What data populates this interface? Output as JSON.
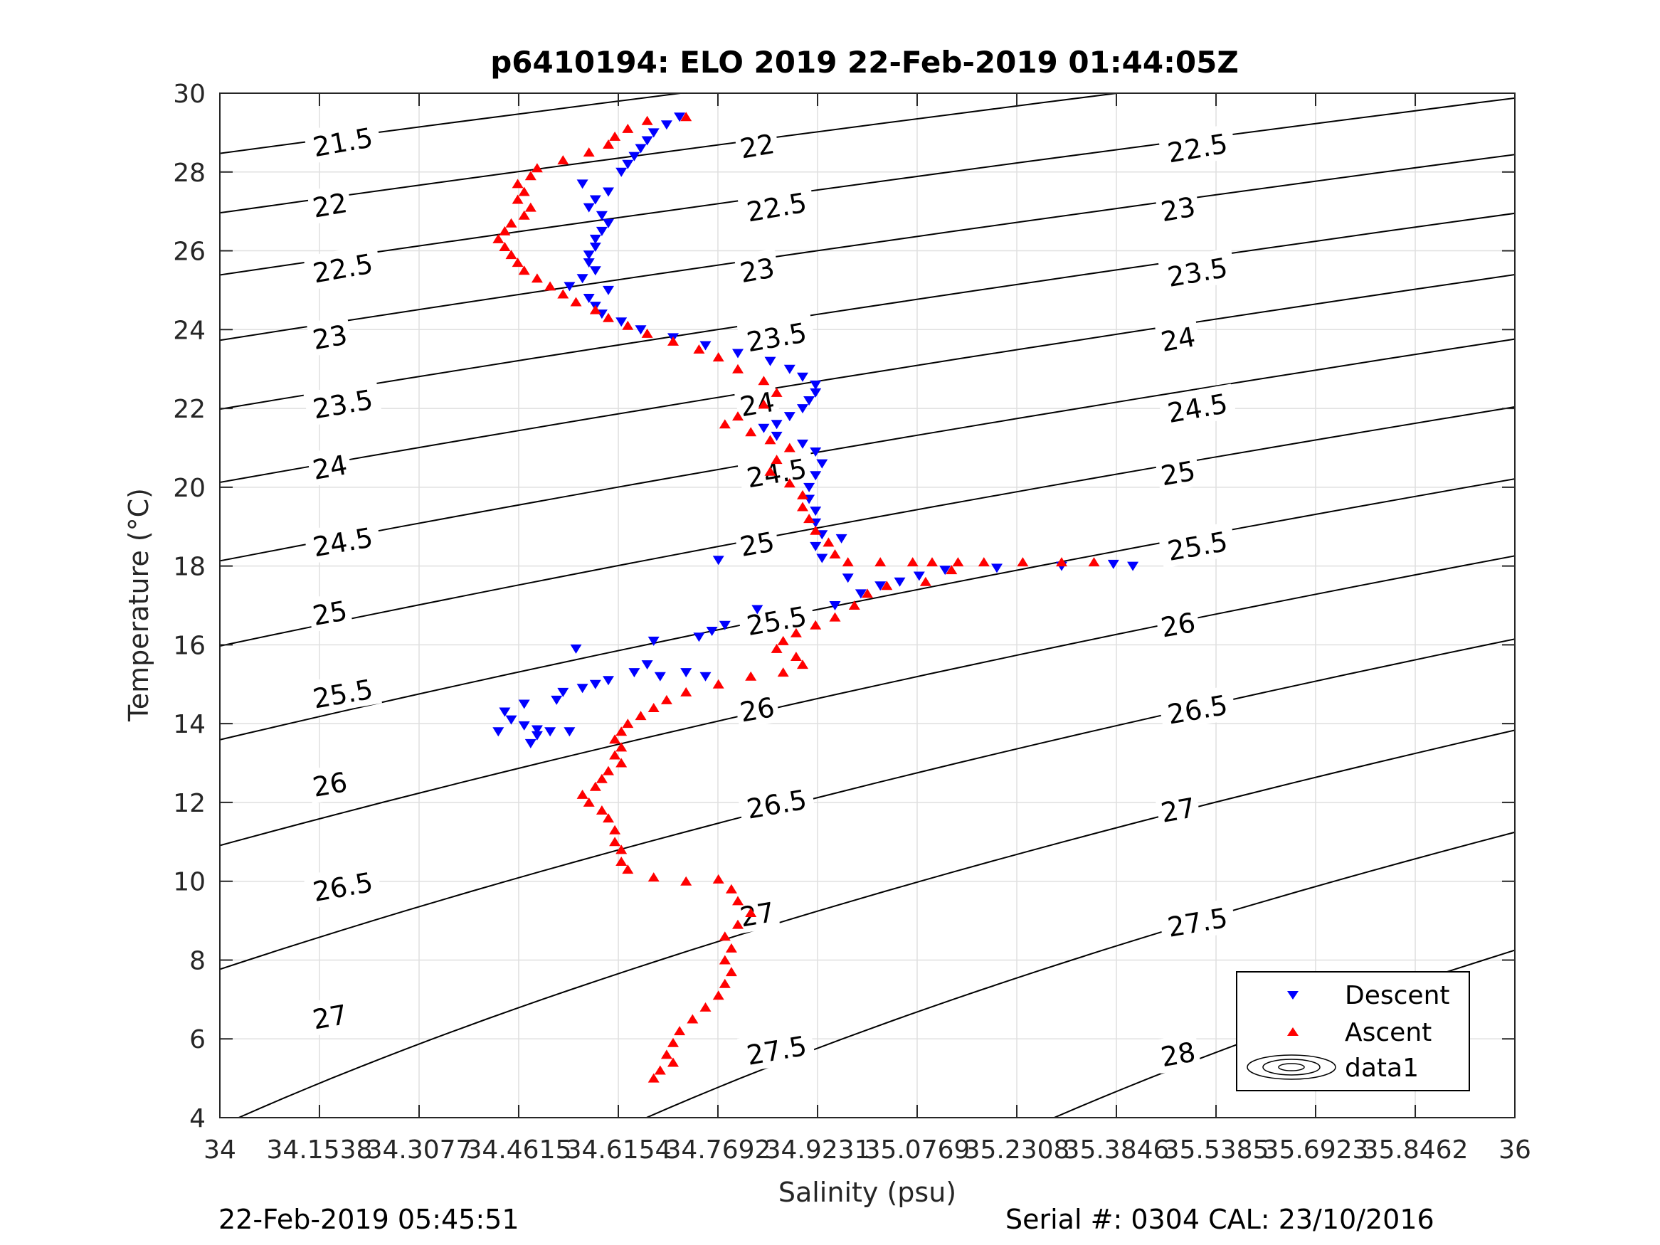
{
  "chart_data": {
    "type": "scatter",
    "title": "p6410194: ELO 2019 22-Feb-2019 01:44:05Z",
    "xlabel": "Salinity (psu)",
    "ylabel": "Temperature (°C)",
    "xlim": [
      34,
      36
    ],
    "ylim": [
      4,
      30
    ],
    "grid": true,
    "legend_position": "bottom-right",
    "x_ticks": [
      34,
      34.1538,
      34.3077,
      34.4615,
      34.6154,
      34.7692,
      34.9231,
      35.0769,
      35.2308,
      35.3846,
      35.5385,
      35.6923,
      35.8462,
      36
    ],
    "x_tick_labels": [
      "34",
      "34.1538",
      "34.3077",
      "34.4615",
      "34.6154",
      "34.7692",
      "34.9231",
      "35.0769",
      "35.2308",
      "35.3846",
      "35.5385",
      "35.6923",
      "35.8462",
      "36"
    ],
    "y_ticks": [
      4,
      6,
      8,
      10,
      12,
      14,
      16,
      18,
      20,
      22,
      24,
      26,
      28,
      30
    ],
    "y_tick_labels": [
      "4",
      "6",
      "8",
      "10",
      "12",
      "14",
      "16",
      "18",
      "20",
      "22",
      "24",
      "26",
      "28",
      "30"
    ],
    "density_contours": {
      "levels": [
        21.5,
        22,
        22.5,
        23,
        23.5,
        24,
        24.5,
        25,
        25.5,
        26,
        26.5,
        27,
        27.5,
        28
      ],
      "labels": [
        {
          "text": "21.5",
          "s": 34.19,
          "t": 28.75
        },
        {
          "text": "22",
          "s": 34.17,
          "t": 27.15
        },
        {
          "text": "22.5",
          "s": 34.19,
          "t": 25.55
        },
        {
          "text": "23",
          "s": 34.17,
          "t": 23.8
        },
        {
          "text": "23.5",
          "s": 34.19,
          "t": 22.1
        },
        {
          "text": "24",
          "s": 34.17,
          "t": 20.5
        },
        {
          "text": "24.5",
          "s": 34.19,
          "t": 18.6
        },
        {
          "text": "25",
          "s": 34.17,
          "t": 16.8
        },
        {
          "text": "25.5",
          "s": 34.19,
          "t": 14.75
        },
        {
          "text": "26",
          "s": 34.17,
          "t": 12.45
        },
        {
          "text": "26.5",
          "s": 34.19,
          "t": 9.85
        },
        {
          "text": "27",
          "s": 34.17,
          "t": 6.55
        },
        {
          "text": "22",
          "s": 34.83,
          "t": 28.65
        },
        {
          "text": "22.5",
          "s": 34.86,
          "t": 27.1
        },
        {
          "text": "23",
          "s": 34.83,
          "t": 25.5
        },
        {
          "text": "23.5",
          "s": 34.86,
          "t": 23.8
        },
        {
          "text": "24",
          "s": 34.83,
          "t": 22.1
        },
        {
          "text": "24.5",
          "s": 34.86,
          "t": 20.35
        },
        {
          "text": "25",
          "s": 34.83,
          "t": 18.55
        },
        {
          "text": "25.5",
          "s": 34.86,
          "t": 16.6
        },
        {
          "text": "26",
          "s": 34.83,
          "t": 14.35
        },
        {
          "text": "26.5",
          "s": 34.86,
          "t": 11.95
        },
        {
          "text": "27",
          "s": 34.83,
          "t": 9.15
        },
        {
          "text": "27.5",
          "s": 34.86,
          "t": 5.7
        },
        {
          "text": "22.5",
          "s": 35.51,
          "t": 28.6
        },
        {
          "text": "23",
          "s": 35.48,
          "t": 27.05
        },
        {
          "text": "23.5",
          "s": 35.51,
          "t": 25.45
        },
        {
          "text": "24",
          "s": 35.48,
          "t": 23.75
        },
        {
          "text": "24.5",
          "s": 35.51,
          "t": 22.0
        },
        {
          "text": "25",
          "s": 35.48,
          "t": 20.35
        },
        {
          "text": "25.5",
          "s": 35.51,
          "t": 18.5
        },
        {
          "text": "26",
          "s": 35.48,
          "t": 16.5
        },
        {
          "text": "26.5",
          "s": 35.51,
          "t": 14.35
        },
        {
          "text": "27",
          "s": 35.48,
          "t": 11.8
        },
        {
          "text": "27.5",
          "s": 35.51,
          "t": 8.95
        },
        {
          "text": "28",
          "s": 35.48,
          "t": 5.6
        }
      ]
    },
    "series": [
      {
        "name": "Descent",
        "marker": "triangle-down",
        "color": "#0000ff",
        "points": [
          [
            34.71,
            29.4
          ],
          [
            34.69,
            29.2
          ],
          [
            34.67,
            29.0
          ],
          [
            34.66,
            28.8
          ],
          [
            34.65,
            28.6
          ],
          [
            34.64,
            28.4
          ],
          [
            34.63,
            28.2
          ],
          [
            34.62,
            28.0
          ],
          [
            34.56,
            27.7
          ],
          [
            34.6,
            27.5
          ],
          [
            34.58,
            27.3
          ],
          [
            34.57,
            27.1
          ],
          [
            34.59,
            26.9
          ],
          [
            34.6,
            26.7
          ],
          [
            34.59,
            26.5
          ],
          [
            34.58,
            26.3
          ],
          [
            34.58,
            26.1
          ],
          [
            34.57,
            25.9
          ],
          [
            34.57,
            25.7
          ],
          [
            34.58,
            25.5
          ],
          [
            34.56,
            25.3
          ],
          [
            34.54,
            25.1
          ],
          [
            34.6,
            25.0
          ],
          [
            34.57,
            24.8
          ],
          [
            34.58,
            24.6
          ],
          [
            34.59,
            24.4
          ],
          [
            34.62,
            24.2
          ],
          [
            34.65,
            24.0
          ],
          [
            34.7,
            23.8
          ],
          [
            34.75,
            23.6
          ],
          [
            34.8,
            23.4
          ],
          [
            34.85,
            23.2
          ],
          [
            34.88,
            23.0
          ],
          [
            34.9,
            22.8
          ],
          [
            34.92,
            22.6
          ],
          [
            34.92,
            22.4
          ],
          [
            34.91,
            22.2
          ],
          [
            34.9,
            22.0
          ],
          [
            34.88,
            21.8
          ],
          [
            34.86,
            21.6
          ],
          [
            34.84,
            21.5
          ],
          [
            34.86,
            21.3
          ],
          [
            34.9,
            21.1
          ],
          [
            34.92,
            20.9
          ],
          [
            34.93,
            20.6
          ],
          [
            34.92,
            20.3
          ],
          [
            34.91,
            20.0
          ],
          [
            34.91,
            19.7
          ],
          [
            34.92,
            19.4
          ],
          [
            34.92,
            19.1
          ],
          [
            34.93,
            18.8
          ],
          [
            34.96,
            18.7
          ],
          [
            34.92,
            18.5
          ],
          [
            34.93,
            18.2
          ],
          [
            34.77,
            18.15
          ],
          [
            34.97,
            17.7
          ],
          [
            35.02,
            17.5
          ],
          [
            35.05,
            17.6
          ],
          [
            35.08,
            17.75
          ],
          [
            35.12,
            17.9
          ],
          [
            35.2,
            17.95
          ],
          [
            35.3,
            18.0
          ],
          [
            35.38,
            18.05
          ],
          [
            35.41,
            18.0
          ],
          [
            34.99,
            17.3
          ],
          [
            34.95,
            17.0
          ],
          [
            34.83,
            16.9
          ],
          [
            34.78,
            16.5
          ],
          [
            34.76,
            16.35
          ],
          [
            34.74,
            16.2
          ],
          [
            34.67,
            16.1
          ],
          [
            34.55,
            15.9
          ],
          [
            34.66,
            15.5
          ],
          [
            34.64,
            15.3
          ],
          [
            34.68,
            15.2
          ],
          [
            34.72,
            15.3
          ],
          [
            34.75,
            15.2
          ],
          [
            34.6,
            15.1
          ],
          [
            34.58,
            15.0
          ],
          [
            34.56,
            14.9
          ],
          [
            34.53,
            14.8
          ],
          [
            34.52,
            14.6
          ],
          [
            34.47,
            14.5
          ],
          [
            34.44,
            14.3
          ],
          [
            34.45,
            14.1
          ],
          [
            34.47,
            13.95
          ],
          [
            34.49,
            13.85
          ],
          [
            34.51,
            13.8
          ],
          [
            34.54,
            13.8
          ],
          [
            34.49,
            13.7
          ],
          [
            34.48,
            13.5
          ],
          [
            34.43,
            13.8
          ]
        ]
      },
      {
        "name": "Ascent",
        "marker": "triangle-up",
        "color": "#ff0000",
        "points": [
          [
            34.72,
            29.4
          ],
          [
            34.66,
            29.3
          ],
          [
            34.63,
            29.1
          ],
          [
            34.61,
            28.9
          ],
          [
            34.6,
            28.7
          ],
          [
            34.57,
            28.5
          ],
          [
            34.53,
            28.3
          ],
          [
            34.49,
            28.1
          ],
          [
            34.48,
            27.9
          ],
          [
            34.46,
            27.7
          ],
          [
            34.47,
            27.5
          ],
          [
            34.46,
            27.3
          ],
          [
            34.48,
            27.1
          ],
          [
            34.47,
            26.9
          ],
          [
            34.45,
            26.7
          ],
          [
            34.44,
            26.5
          ],
          [
            34.43,
            26.3
          ],
          [
            34.44,
            26.1
          ],
          [
            34.45,
            25.9
          ],
          [
            34.46,
            25.7
          ],
          [
            34.47,
            25.5
          ],
          [
            34.49,
            25.3
          ],
          [
            34.51,
            25.1
          ],
          [
            34.53,
            24.9
          ],
          [
            34.55,
            24.7
          ],
          [
            34.58,
            24.5
          ],
          [
            34.6,
            24.3
          ],
          [
            34.63,
            24.1
          ],
          [
            34.66,
            23.9
          ],
          [
            34.7,
            23.7
          ],
          [
            34.74,
            23.5
          ],
          [
            34.77,
            23.3
          ],
          [
            34.8,
            23.0
          ],
          [
            34.84,
            22.7
          ],
          [
            34.86,
            22.4
          ],
          [
            34.84,
            22.1
          ],
          [
            34.8,
            21.8
          ],
          [
            34.78,
            21.6
          ],
          [
            34.82,
            21.4
          ],
          [
            34.85,
            21.2
          ],
          [
            34.88,
            21.0
          ],
          [
            34.86,
            20.7
          ],
          [
            34.85,
            20.4
          ],
          [
            34.88,
            20.1
          ],
          [
            34.9,
            19.8
          ],
          [
            34.9,
            19.5
          ],
          [
            34.91,
            19.2
          ],
          [
            34.92,
            18.9
          ],
          [
            34.94,
            18.6
          ],
          [
            34.95,
            18.3
          ],
          [
            34.97,
            18.1
          ],
          [
            35.02,
            18.1
          ],
          [
            35.07,
            18.1
          ],
          [
            35.1,
            18.1
          ],
          [
            35.14,
            18.1
          ],
          [
            35.18,
            18.1
          ],
          [
            35.24,
            18.1
          ],
          [
            35.3,
            18.1
          ],
          [
            35.35,
            18.1
          ],
          [
            35.13,
            17.9
          ],
          [
            35.09,
            17.6
          ],
          [
            35.03,
            17.5
          ],
          [
            35.0,
            17.3
          ],
          [
            34.98,
            17.0
          ],
          [
            34.95,
            16.7
          ],
          [
            34.92,
            16.5
          ],
          [
            34.89,
            16.3
          ],
          [
            34.87,
            16.1
          ],
          [
            34.86,
            15.9
          ],
          [
            34.89,
            15.7
          ],
          [
            34.9,
            15.5
          ],
          [
            34.87,
            15.3
          ],
          [
            34.82,
            15.2
          ],
          [
            34.77,
            15.0
          ],
          [
            34.72,
            14.8
          ],
          [
            34.69,
            14.6
          ],
          [
            34.67,
            14.4
          ],
          [
            34.65,
            14.2
          ],
          [
            34.63,
            14.0
          ],
          [
            34.62,
            13.8
          ],
          [
            34.61,
            13.6
          ],
          [
            34.62,
            13.4
          ],
          [
            34.61,
            13.2
          ],
          [
            34.62,
            13.0
          ],
          [
            34.6,
            12.8
          ],
          [
            34.59,
            12.6
          ],
          [
            34.58,
            12.4
          ],
          [
            34.56,
            12.2
          ],
          [
            34.57,
            12.0
          ],
          [
            34.59,
            11.8
          ],
          [
            34.6,
            11.6
          ],
          [
            34.61,
            11.3
          ],
          [
            34.61,
            11.0
          ],
          [
            34.62,
            10.8
          ],
          [
            34.62,
            10.5
          ],
          [
            34.63,
            10.3
          ],
          [
            34.67,
            10.1
          ],
          [
            34.72,
            10.0
          ],
          [
            34.77,
            10.05
          ],
          [
            34.79,
            9.8
          ],
          [
            34.8,
            9.5
          ],
          [
            34.82,
            9.2
          ],
          [
            34.8,
            8.9
          ],
          [
            34.78,
            8.6
          ],
          [
            34.79,
            8.3
          ],
          [
            34.78,
            8.0
          ],
          [
            34.79,
            7.7
          ],
          [
            34.78,
            7.4
          ],
          [
            34.77,
            7.1
          ],
          [
            34.75,
            6.8
          ],
          [
            34.73,
            6.5
          ],
          [
            34.71,
            6.2
          ],
          [
            34.7,
            5.9
          ],
          [
            34.69,
            5.6
          ],
          [
            34.7,
            5.4
          ],
          [
            34.68,
            5.2
          ],
          [
            34.67,
            5.0
          ]
        ]
      }
    ],
    "legend_entries": [
      "Descent",
      "Ascent",
      "data1"
    ]
  },
  "footer": {
    "left": "22-Feb-2019 05:45:51",
    "right": "Serial #: 0304  CAL: 23/10/2016"
  },
  "colors": {
    "descent": "#0000ff",
    "ascent": "#ff0000",
    "contour": "#000000",
    "grid": "#dfdfdf",
    "axis": "#262626"
  }
}
